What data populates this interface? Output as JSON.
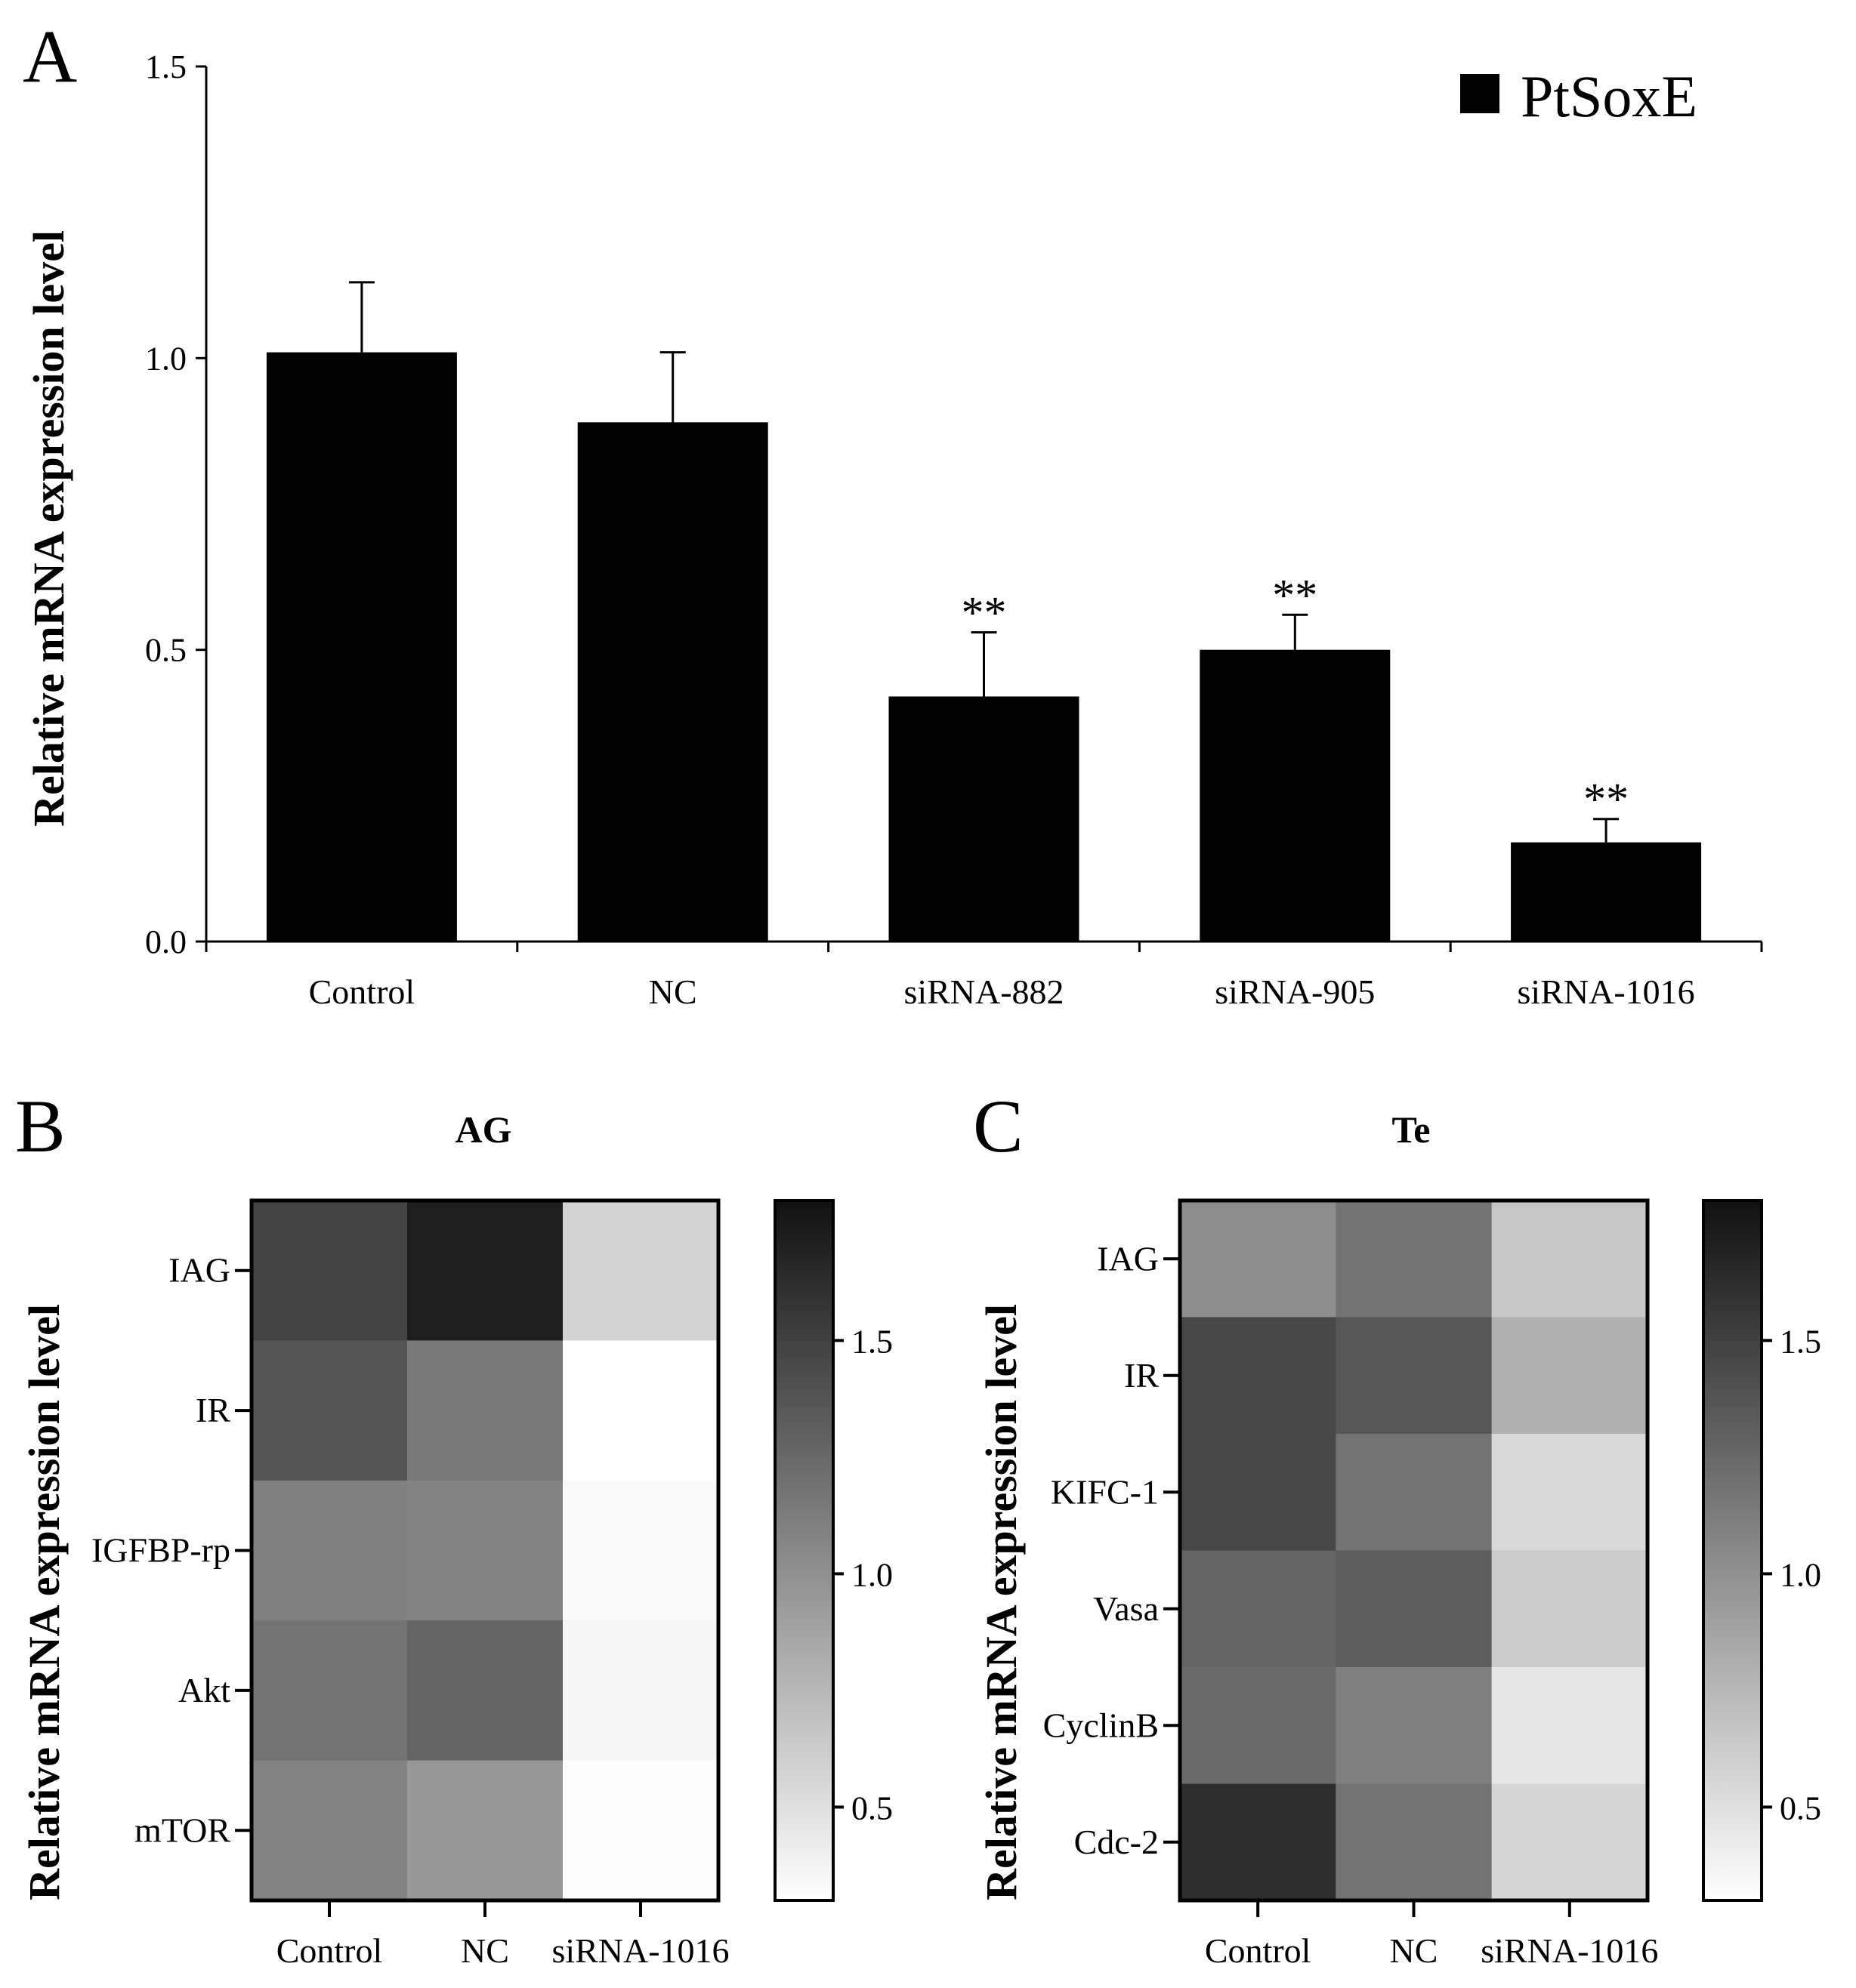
{
  "panels": {
    "a_letter": "A",
    "b_letter": "B",
    "c_letter": "C"
  },
  "chart_data": [
    {
      "type": "bar",
      "ylabel": "Relative mRNA expression level",
      "ylim": [
        0,
        1.5
      ],
      "yticks": [
        "0.0",
        "0.5",
        "1.0",
        "1.5"
      ],
      "categories": [
        "Control",
        "NC",
        "siRNA-882",
        "siRNA-905",
        "siRNA-1016"
      ],
      "series": [
        {
          "name": "PtSoxE",
          "values": [
            1.01,
            0.89,
            0.42,
            0.5,
            0.17
          ],
          "errors": [
            0.12,
            0.12,
            0.11,
            0.06,
            0.04
          ],
          "significance": [
            "",
            "",
            "**",
            "**",
            "**"
          ],
          "color": "#000000"
        }
      ],
      "legend": "top-right",
      "grid": false
    },
    {
      "type": "heatmap",
      "title": "AG",
      "ylabel": "Relative mRNA expression level",
      "columns": [
        "Control",
        "NC",
        "siRNA-1016"
      ],
      "rows": [
        "IAG",
        "IR",
        "IGFBP-rp",
        "Akt",
        "mTOR"
      ],
      "values": [
        [
          1.48,
          1.72,
          0.58
        ],
        [
          1.38,
          1.15,
          0.28
        ],
        [
          1.1,
          1.08,
          0.33
        ],
        [
          1.18,
          1.28,
          0.35
        ],
        [
          1.08,
          0.95,
          0.31
        ]
      ],
      "colorbar": {
        "min": 0.3,
        "max": 1.8,
        "ticks": [
          "0.5",
          "1.0",
          "1.5"
        ],
        "low_color": "#ffffff",
        "high_color": "#111111"
      }
    },
    {
      "type": "heatmap",
      "title": "Te",
      "ylabel": "Relative mRNA expression level",
      "columns": [
        "Control",
        "NC",
        "siRNA-1016"
      ],
      "rows": [
        "IAG",
        "IR",
        "KIFC-1",
        "Vasa",
        "CyclinB",
        "Cdc-2"
      ],
      "values": [
        [
          1.02,
          1.18,
          0.66
        ],
        [
          1.46,
          1.36,
          0.8
        ],
        [
          1.46,
          1.18,
          0.54
        ],
        [
          1.28,
          1.32,
          0.63
        ],
        [
          1.24,
          1.1,
          0.46
        ],
        [
          1.62,
          1.18,
          0.56
        ]
      ],
      "colorbar": {
        "min": 0.3,
        "max": 1.8,
        "ticks": [
          "0.5",
          "1.0",
          "1.5"
        ],
        "low_color": "#ffffff",
        "high_color": "#111111"
      }
    }
  ]
}
